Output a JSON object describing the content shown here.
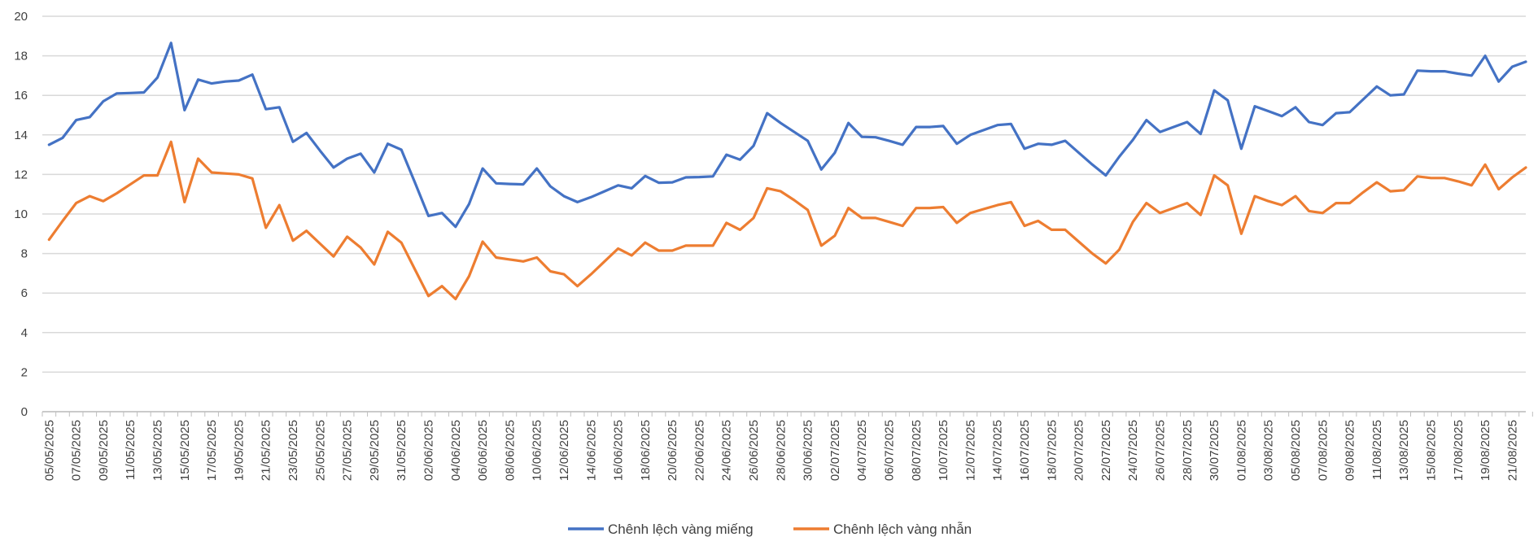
{
  "chart_data": {
    "type": "line",
    "title": "",
    "xlabel": "",
    "ylabel": "",
    "ylim": [
      0,
      20
    ],
    "yticks": [
      0,
      2,
      4,
      6,
      8,
      10,
      12,
      14,
      16,
      18,
      20
    ],
    "grid": "horizontal",
    "legend_position": "bottom",
    "x_tick_labels": [
      "05/05/2025",
      "07/05/2025",
      "09/05/2025",
      "11/05/2025",
      "13/05/2025",
      "15/05/2025",
      "17/05/2025",
      "19/05/2025",
      "21/05/2025",
      "23/05/2025",
      "25/05/2025",
      "27/05/2025",
      "29/05/2025",
      "31/05/2025",
      "02/06/2025",
      "04/06/2025",
      "06/06/2025",
      "08/06/2025",
      "10/06/2025",
      "12/06/2025",
      "14/06/2025",
      "16/06/2025",
      "18/06/2025",
      "20/06/2025",
      "22/06/2025",
      "24/06/2025",
      "26/06/2025",
      "28/06/2025",
      "30/06/2025",
      "02/07/2025",
      "04/07/2025",
      "06/07/2025",
      "08/07/2025",
      "10/07/2025",
      "12/07/2025",
      "14/07/2025",
      "16/07/2025",
      "18/07/2025",
      "20/07/2025",
      "22/07/2025",
      "24/07/2025",
      "26/07/2025",
      "28/07/2025",
      "30/07/2025",
      "01/08/2025",
      "03/08/2025",
      "05/08/2025",
      "07/08/2025",
      "09/08/2025",
      "11/08/2025",
      "13/08/2025",
      "15/08/2025",
      "17/08/2025",
      "19/08/2025",
      "21/08/2025"
    ],
    "series": [
      {
        "name": "Chênh lệch vàng miếng",
        "color": "#4472C4",
        "values": [
          13.5,
          13.85,
          14.75,
          14.9,
          15.7,
          16.1,
          16.12,
          16.15,
          16.9,
          18.65,
          15.25,
          16.8,
          16.6,
          16.7,
          16.75,
          17.05,
          15.3,
          15.4,
          13.65,
          14.1,
          13.2,
          12.35,
          12.8,
          13.05,
          12.1,
          13.55,
          13.25,
          11.6,
          9.9,
          10.05,
          9.35,
          10.5,
          12.3,
          11.55,
          11.52,
          11.5,
          12.3,
          11.4,
          10.9,
          10.6,
          10.85,
          11.15,
          11.45,
          11.3,
          11.92,
          11.58,
          11.6,
          11.85,
          11.87,
          11.9,
          13.0,
          12.75,
          13.45,
          15.1,
          14.6,
          14.15,
          13.7,
          12.25,
          13.1,
          14.6,
          13.9,
          13.88,
          13.7,
          13.5,
          14.4,
          14.4,
          14.45,
          13.55,
          14.0,
          14.25,
          14.5,
          14.55,
          13.3,
          13.55,
          13.5,
          13.7,
          13.1,
          12.5,
          11.95,
          12.9,
          13.75,
          14.75,
          14.15,
          14.4,
          14.65,
          14.05,
          16.25,
          15.75,
          13.3,
          15.45,
          15.2,
          14.95,
          15.4,
          14.65,
          14.5,
          15.1,
          15.15,
          15.8,
          16.45,
          16.0,
          16.05,
          17.25,
          17.22,
          17.22,
          17.1,
          17.0,
          18.0,
          16.7,
          17.45,
          17.7
        ]
      },
      {
        "name": "Chênh lệch vàng nhẫn",
        "color": "#ED7D31",
        "values": [
          8.7,
          9.65,
          10.55,
          10.9,
          10.65,
          11.05,
          11.5,
          11.95,
          11.95,
          13.65,
          10.6,
          12.8,
          12.1,
          12.05,
          12.0,
          11.8,
          9.3,
          10.45,
          8.65,
          9.15,
          8.5,
          7.85,
          8.85,
          8.3,
          7.45,
          9.1,
          8.55,
          7.2,
          5.85,
          6.35,
          5.7,
          6.85,
          8.6,
          7.8,
          7.7,
          7.6,
          7.8,
          7.1,
          6.95,
          6.35,
          6.95,
          7.6,
          8.25,
          7.9,
          8.55,
          8.15,
          8.15,
          8.4,
          8.4,
          8.4,
          9.55,
          9.2,
          9.8,
          11.3,
          11.15,
          10.7,
          10.2,
          8.4,
          8.9,
          10.3,
          9.8,
          9.8,
          9.6,
          9.4,
          10.3,
          10.3,
          10.35,
          9.55,
          10.05,
          10.25,
          10.45,
          10.6,
          9.4,
          9.65,
          9.2,
          9.2,
          8.6,
          8.0,
          7.5,
          8.2,
          9.6,
          10.55,
          10.05,
          10.3,
          10.55,
          9.95,
          11.95,
          11.45,
          9.0,
          10.9,
          10.65,
          10.45,
          10.9,
          10.15,
          10.05,
          10.55,
          10.55,
          11.1,
          11.6,
          11.15,
          11.2,
          11.9,
          11.82,
          11.82,
          11.65,
          11.45,
          12.5,
          11.25,
          11.85,
          12.35
        ]
      }
    ]
  }
}
